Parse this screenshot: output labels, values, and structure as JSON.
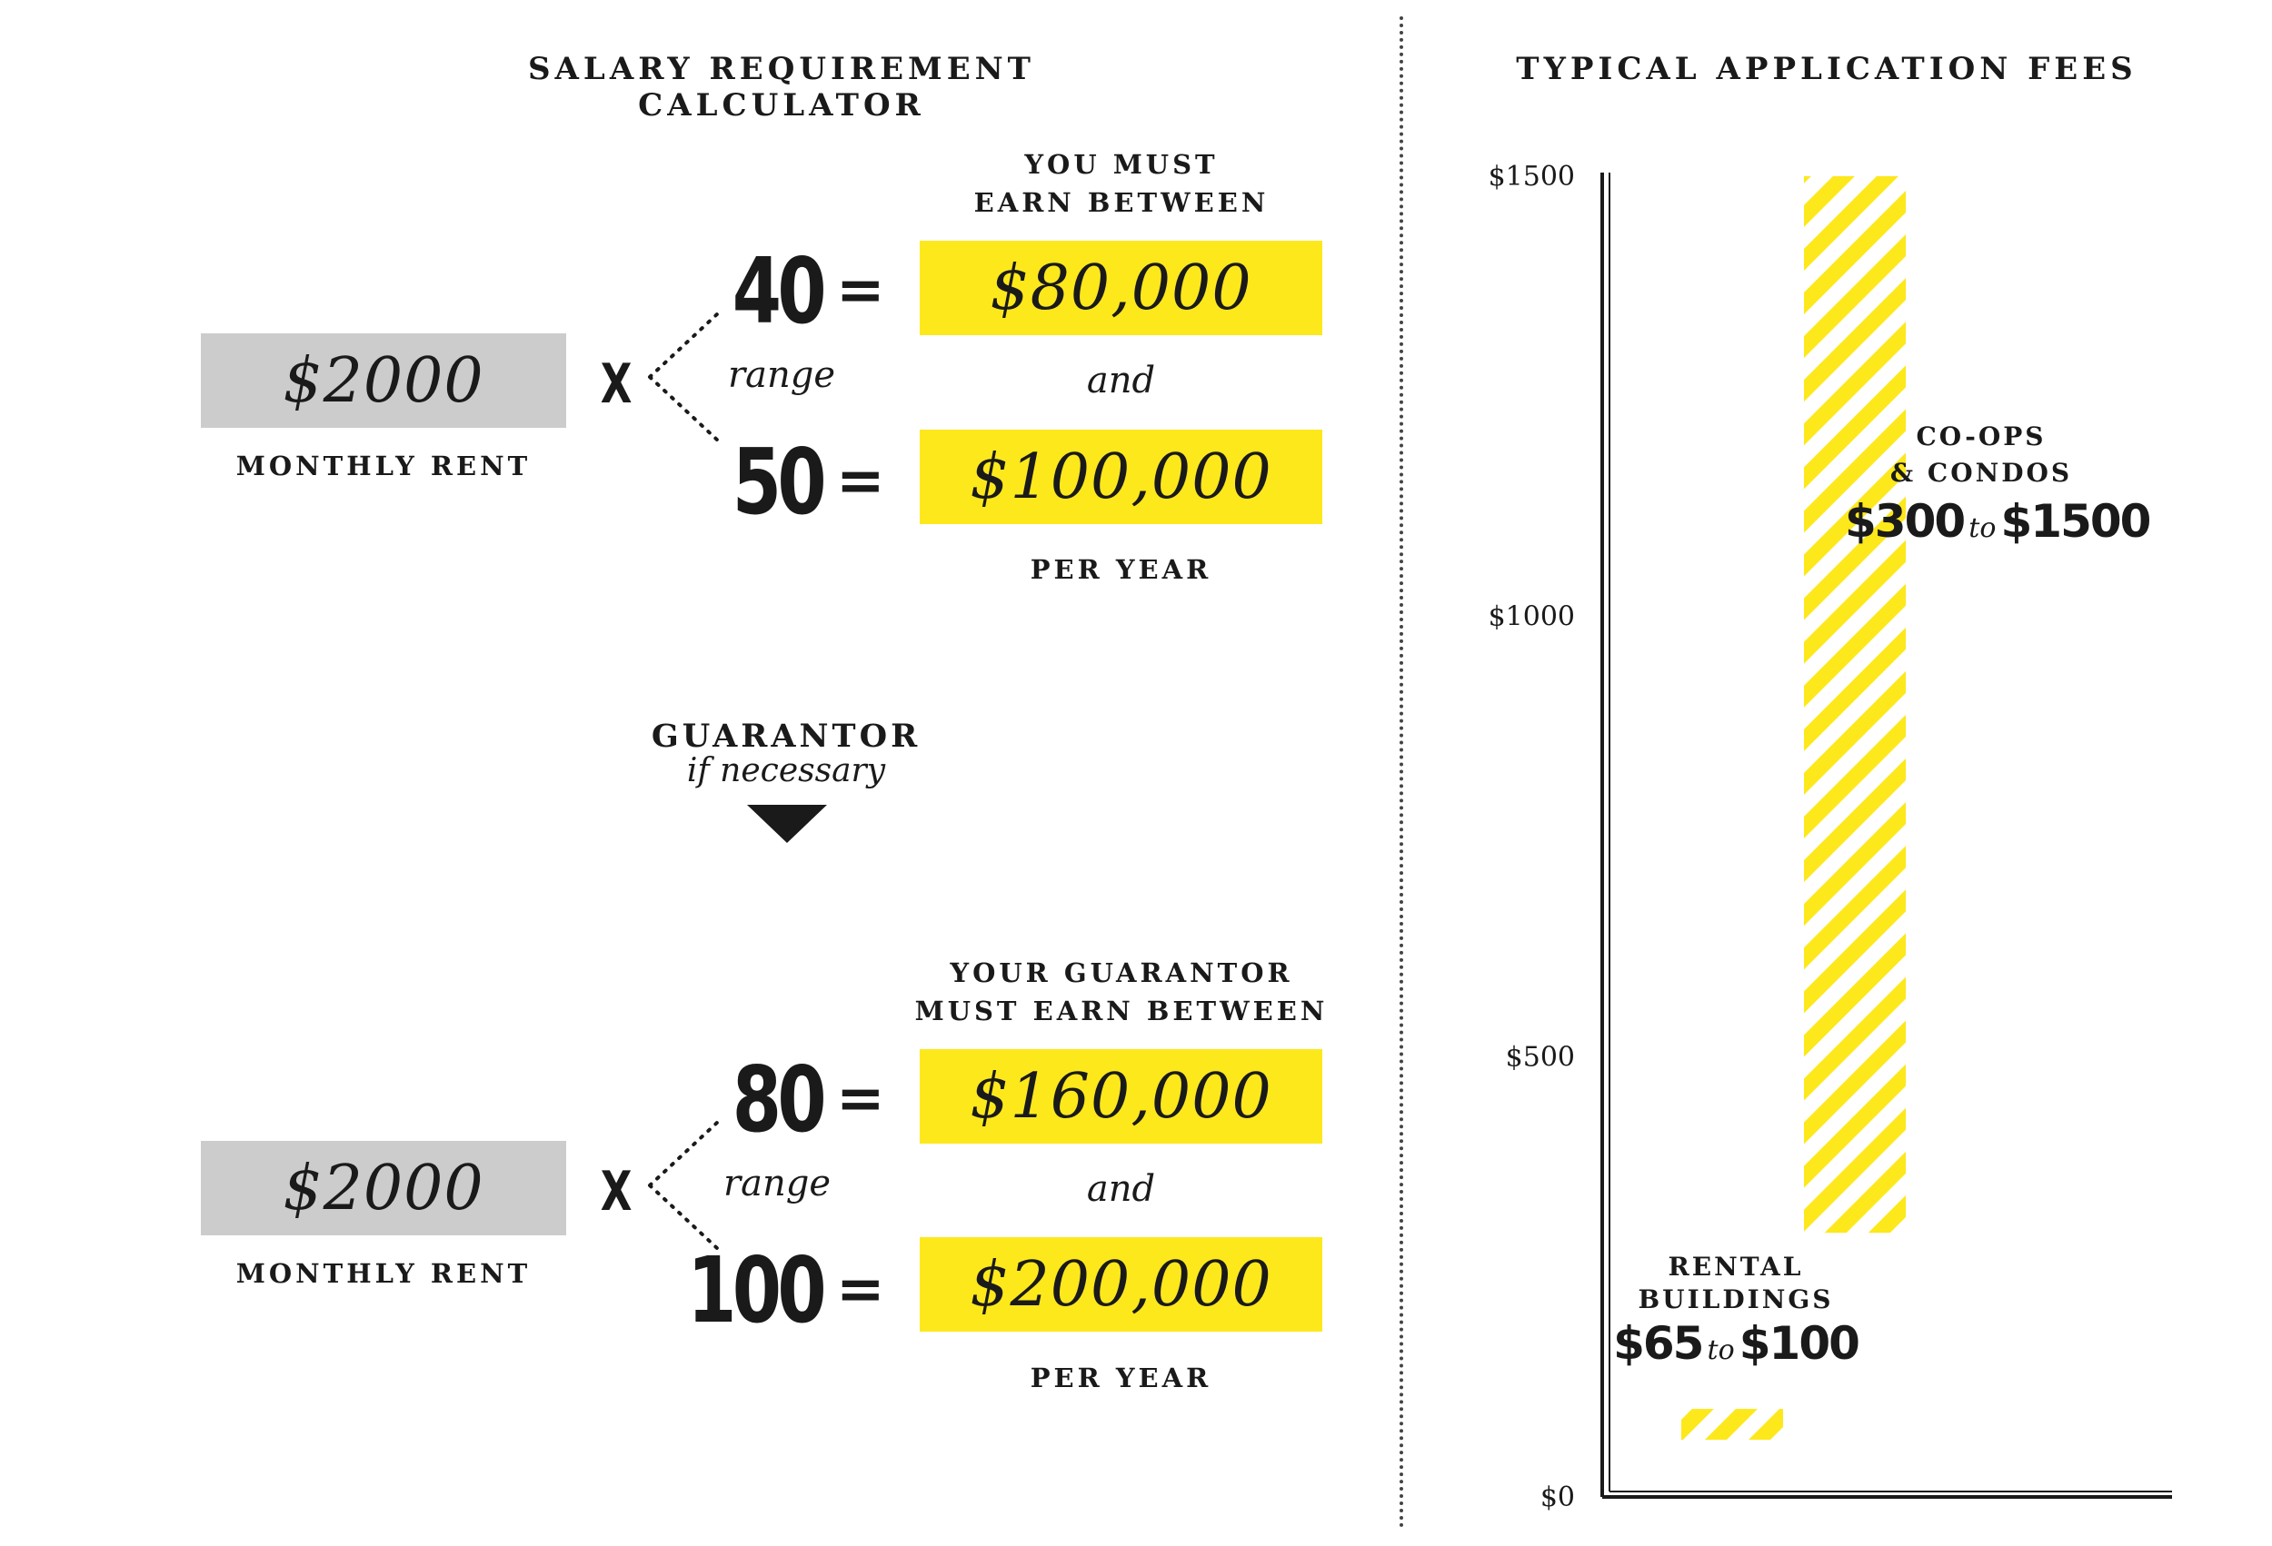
{
  "calculator": {
    "title": "SALARY REQUIREMENT CALCULATOR",
    "top": {
      "rent": "$2000",
      "rent_label": "MONTHLY RENT",
      "times": "X",
      "range_word": "range",
      "header": [
        "YOU MUST",
        "EARN BETWEEN"
      ],
      "low_multiplier": "40",
      "high_multiplier": "50",
      "equals": "=",
      "low_value": "$80,000",
      "and_word": "and",
      "high_value": "$100,000",
      "footer": "PER YEAR"
    },
    "guarantor": {
      "label": "GUARANTOR",
      "sublabel": "if necessary"
    },
    "bottom": {
      "rent": "$2000",
      "rent_label": "MONTHLY RENT",
      "times": "X",
      "range_word": "range",
      "header": [
        "YOUR GUARANTOR",
        "MUST EARN BETWEEN"
      ],
      "low_multiplier": "80",
      "high_multiplier": "100",
      "equals": "=",
      "low_value": "$160,000",
      "and_word": "and",
      "high_value": "$200,000",
      "footer": "PER YEAR"
    }
  },
  "chart_data": {
    "type": "bar",
    "title": "TYPICAL APPLICATION FEES",
    "ylim": [
      0,
      1500
    ],
    "yticks": [
      {
        "value": 0,
        "label": "$0"
      },
      {
        "value": 500,
        "label": "$500"
      },
      {
        "value": 1000,
        "label": "$1000"
      },
      {
        "value": 1500,
        "label": "$1500"
      }
    ],
    "grid": false,
    "bar_fill": "#fde81c",
    "bar_pattern": "diagonal-stripes",
    "bars": [
      {
        "category": "RENTAL BUILDINGS",
        "label_lines": [
          "RENTAL",
          "BUILDINGS"
        ],
        "low": 65,
        "high": 100,
        "low_label": "$65",
        "to_word": "to",
        "high_label": "$100"
      },
      {
        "category": "CO-OPS & CONDOS",
        "label_lines": [
          "CO-OPS",
          "& CONDOS"
        ],
        "low": 300,
        "high": 1500,
        "low_label": "$300",
        "to_word": "to",
        "high_label": "$1500"
      }
    ]
  }
}
